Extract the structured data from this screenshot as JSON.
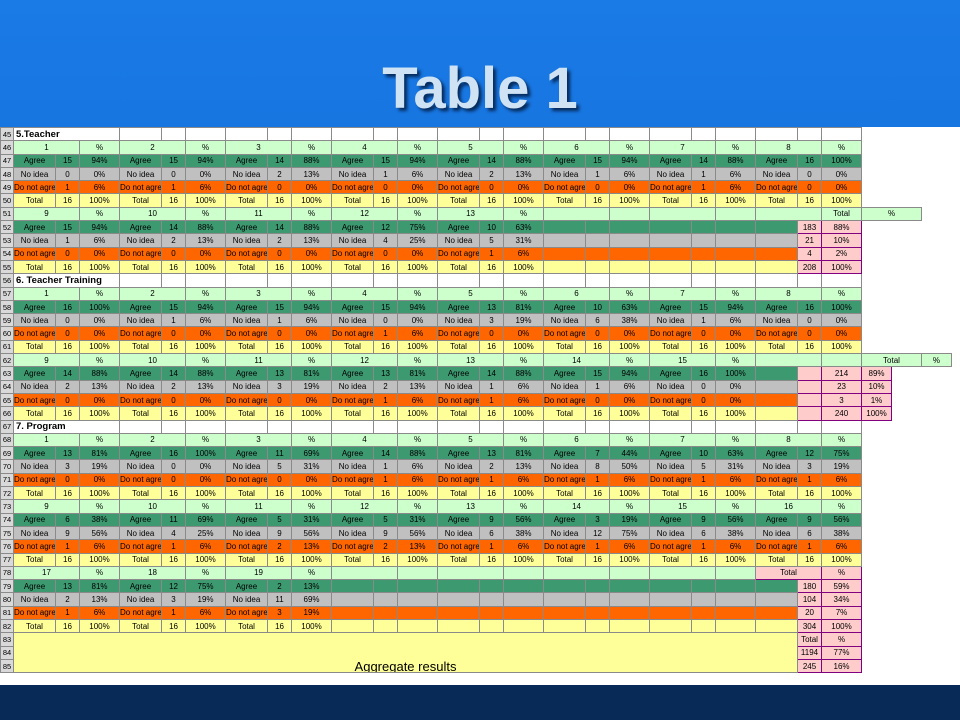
{
  "slide": {
    "title": "Table 1"
  },
  "aggregate_label": "Aggregate results",
  "rows": [
    {
      "n": "45",
      "type": "sec",
      "cells": [
        "5.Teacher"
      ]
    },
    {
      "n": "46",
      "type": "hdr",
      "cells": [
        "1",
        "%",
        "2",
        "%",
        "3",
        "%",
        "4",
        "%",
        "5",
        "%",
        "6",
        "%",
        "7",
        "%",
        "8",
        "%"
      ]
    },
    {
      "n": "47",
      "type": "agree",
      "cells": [
        "Agree",
        "15",
        "94%",
        "Agree",
        "15",
        "94%",
        "Agree",
        "14",
        "88%",
        "Agree",
        "15",
        "94%",
        "Agree",
        "14",
        "88%",
        "Agree",
        "15",
        "94%",
        "Agree",
        "14",
        "88%",
        "Agree",
        "16",
        "100%"
      ]
    },
    {
      "n": "48",
      "type": "noidea",
      "cells": [
        "No idea",
        "0",
        "0%",
        "No idea",
        "0",
        "0%",
        "No idea",
        "2",
        "13%",
        "No idea",
        "1",
        "6%",
        "No idea",
        "2",
        "13%",
        "No idea",
        "1",
        "6%",
        "No idea",
        "1",
        "6%",
        "No idea",
        "0",
        "0%"
      ]
    },
    {
      "n": "49",
      "type": "dna",
      "cells": [
        "Do not agree",
        "1",
        "6%",
        "Do not agree",
        "1",
        "6%",
        "Do not agree",
        "0",
        "0%",
        "Do not agree",
        "0",
        "0%",
        "Do not agree",
        "0",
        "0%",
        "Do not agree",
        "0",
        "0%",
        "Do not agree",
        "1",
        "6%",
        "Do not agree",
        "0",
        "0%"
      ]
    },
    {
      "n": "50",
      "type": "total",
      "cells": [
        "Total",
        "16",
        "100%",
        "Total",
        "16",
        "100%",
        "Total",
        "16",
        "100%",
        "Total",
        "16",
        "100%",
        "Total",
        "16",
        "100%",
        "Total",
        "16",
        "100%",
        "Total",
        "16",
        "100%",
        "Total",
        "16",
        "100%"
      ]
    },
    {
      "n": "51",
      "type": "hdr",
      "cells": [
        "9",
        "%",
        "10",
        "%",
        "11",
        "%",
        "12",
        "%",
        "13",
        "%",
        "",
        "",
        "",
        "",
        "",
        "Total",
        "%"
      ]
    },
    {
      "n": "52",
      "type": "agree",
      "cells": [
        "Agree",
        "15",
        "94%",
        "Agree",
        "14",
        "88%",
        "Agree",
        "14",
        "88%",
        "Agree",
        "12",
        "75%",
        "Agree",
        "10",
        "63%",
        "",
        "",
        "",
        "",
        "",
        "",
        "",
        "183",
        "88%"
      ]
    },
    {
      "n": "53",
      "type": "noidea",
      "cells": [
        "No idea",
        "1",
        "6%",
        "No idea",
        "2",
        "13%",
        "No idea",
        "2",
        "13%",
        "No idea",
        "4",
        "25%",
        "No idea",
        "5",
        "31%",
        "",
        "",
        "",
        "",
        "",
        "",
        "",
        "21",
        "10%"
      ]
    },
    {
      "n": "54",
      "type": "dna",
      "cells": [
        "Do not agree",
        "0",
        "0%",
        "Do not agree",
        "0",
        "0%",
        "Do not agree",
        "0",
        "0%",
        "Do not agree",
        "0",
        "0%",
        "Do not agree",
        "1",
        "6%",
        "",
        "",
        "",
        "",
        "",
        "",
        "",
        "4",
        "2%"
      ]
    },
    {
      "n": "55",
      "type": "total",
      "cells": [
        "Total",
        "16",
        "100%",
        "Total",
        "16",
        "100%",
        "Total",
        "16",
        "100%",
        "Total",
        "16",
        "100%",
        "Total",
        "16",
        "100%",
        "",
        "",
        "",
        "",
        "",
        "",
        "",
        "208",
        "100%"
      ]
    },
    {
      "n": "56",
      "type": "sec",
      "cells": [
        "6. Teacher Training"
      ]
    },
    {
      "n": "57",
      "type": "hdr",
      "cells": [
        "1",
        "%",
        "2",
        "%",
        "3",
        "%",
        "4",
        "%",
        "5",
        "%",
        "6",
        "%",
        "7",
        "%",
        "8",
        "%"
      ]
    },
    {
      "n": "58",
      "type": "agree",
      "cells": [
        "Agree",
        "16",
        "100%",
        "Agree",
        "15",
        "94%",
        "Agree",
        "15",
        "94%",
        "Agree",
        "15",
        "94%",
        "Agree",
        "13",
        "81%",
        "Agree",
        "10",
        "63%",
        "Agree",
        "15",
        "94%",
        "Agree",
        "16",
        "100%"
      ]
    },
    {
      "n": "59",
      "type": "noidea",
      "cells": [
        "No idea",
        "0",
        "0%",
        "No idea",
        "1",
        "6%",
        "No idea",
        "1",
        "6%",
        "No idea",
        "0",
        "0%",
        "No idea",
        "3",
        "19%",
        "No idea",
        "6",
        "38%",
        "No idea",
        "1",
        "6%",
        "No idea",
        "0",
        "0%"
      ]
    },
    {
      "n": "60",
      "type": "dna",
      "cells": [
        "Do not agree",
        "0",
        "0%",
        "Do not agree",
        "0",
        "0%",
        "Do not agree",
        "0",
        "0%",
        "Do not agree",
        "1",
        "6%",
        "Do not agree",
        "0",
        "0%",
        "Do not agree",
        "0",
        "0%",
        "Do not agree",
        "0",
        "0%",
        "Do not agree",
        "0",
        "0%"
      ]
    },
    {
      "n": "61",
      "type": "total",
      "cells": [
        "Total",
        "16",
        "100%",
        "Total",
        "16",
        "100%",
        "Total",
        "16",
        "100%",
        "Total",
        "16",
        "100%",
        "Total",
        "16",
        "100%",
        "Total",
        "16",
        "100%",
        "Total",
        "16",
        "100%",
        "Total",
        "16",
        "100%"
      ]
    },
    {
      "n": "62",
      "type": "hdr",
      "cells": [
        "9",
        "%",
        "10",
        "%",
        "11",
        "%",
        "12",
        "%",
        "13",
        "%",
        "14",
        "%",
        "15",
        "%",
        "",
        "",
        "Total",
        "%"
      ]
    },
    {
      "n": "63",
      "type": "agree",
      "cells": [
        "Agree",
        "14",
        "88%",
        "Agree",
        "14",
        "88%",
        "Agree",
        "13",
        "81%",
        "Agree",
        "13",
        "81%",
        "Agree",
        "14",
        "88%",
        "Agree",
        "15",
        "94%",
        "Agree",
        "16",
        "100%",
        "",
        "",
        "214",
        "89%"
      ]
    },
    {
      "n": "64",
      "type": "noidea",
      "cells": [
        "No idea",
        "2",
        "13%",
        "No idea",
        "2",
        "13%",
        "No idea",
        "3",
        "19%",
        "No idea",
        "2",
        "13%",
        "No idea",
        "1",
        "6%",
        "No idea",
        "1",
        "6%",
        "No idea",
        "0",
        "0%",
        "",
        "",
        "23",
        "10%"
      ]
    },
    {
      "n": "65",
      "type": "dna",
      "cells": [
        "Do not agree",
        "0",
        "0%",
        "Do not agree",
        "0",
        "0%",
        "Do not agree",
        "0",
        "0%",
        "Do not agree",
        "1",
        "6%",
        "Do not agree",
        "1",
        "6%",
        "Do not agree",
        "0",
        "0%",
        "Do not agree",
        "0",
        "0%",
        "",
        "",
        "3",
        "1%"
      ]
    },
    {
      "n": "66",
      "type": "total",
      "cells": [
        "Total",
        "16",
        "100%",
        "Total",
        "16",
        "100%",
        "Total",
        "16",
        "100%",
        "Total",
        "16",
        "100%",
        "Total",
        "16",
        "100%",
        "Total",
        "16",
        "100%",
        "Total",
        "16",
        "100%",
        "",
        "",
        "240",
        "100%"
      ]
    },
    {
      "n": "67",
      "type": "sec",
      "cells": [
        "7. Program"
      ]
    },
    {
      "n": "68",
      "type": "hdr",
      "cells": [
        "1",
        "%",
        "2",
        "%",
        "3",
        "%",
        "4",
        "%",
        "5",
        "%",
        "6",
        "%",
        "7",
        "%",
        "8",
        "%"
      ]
    },
    {
      "n": "69",
      "type": "agree",
      "cells": [
        "Agree",
        "13",
        "81%",
        "Agree",
        "16",
        "100%",
        "Agree",
        "11",
        "69%",
        "Agree",
        "14",
        "88%",
        "Agree",
        "13",
        "81%",
        "Agree",
        "7",
        "44%",
        "Agree",
        "10",
        "63%",
        "Agree",
        "12",
        "75%"
      ]
    },
    {
      "n": "70",
      "type": "noidea",
      "cells": [
        "No idea",
        "3",
        "19%",
        "No idea",
        "0",
        "0%",
        "No idea",
        "5",
        "31%",
        "No idea",
        "1",
        "6%",
        "No idea",
        "2",
        "13%",
        "No idea",
        "8",
        "50%",
        "No idea",
        "5",
        "31%",
        "No idea",
        "3",
        "19%"
      ]
    },
    {
      "n": "71",
      "type": "dna",
      "cells": [
        "Do not agree",
        "0",
        "0%",
        "Do not agree",
        "0",
        "0%",
        "Do not agree",
        "0",
        "0%",
        "Do not agree",
        "1",
        "6%",
        "Do not agree",
        "1",
        "6%",
        "Do not agree",
        "1",
        "6%",
        "Do not agree",
        "1",
        "6%",
        "Do not agree",
        "1",
        "6%"
      ]
    },
    {
      "n": "72",
      "type": "total",
      "cells": [
        "Total",
        "16",
        "100%",
        "Total",
        "16",
        "100%",
        "Total",
        "16",
        "100%",
        "Total",
        "16",
        "100%",
        "Total",
        "16",
        "100%",
        "Total",
        "16",
        "100%",
        "Total",
        "16",
        "100%",
        "Total",
        "16",
        "100%"
      ]
    },
    {
      "n": "73",
      "type": "hdr",
      "cells": [
        "9",
        "%",
        "10",
        "%",
        "11",
        "%",
        "12",
        "%",
        "13",
        "%",
        "14",
        "%",
        "15",
        "%",
        "16",
        "%"
      ]
    },
    {
      "n": "74",
      "type": "agree",
      "cells": [
        "Agree",
        "6",
        "38%",
        "Agree",
        "11",
        "69%",
        "Agree",
        "5",
        "31%",
        "Agree",
        "5",
        "31%",
        "Agree",
        "9",
        "56%",
        "Agree",
        "3",
        "19%",
        "Agree",
        "9",
        "56%",
        "Agree",
        "9",
        "56%"
      ]
    },
    {
      "n": "75",
      "type": "noidea",
      "cells": [
        "No idea",
        "9",
        "56%",
        "No idea",
        "4",
        "25%",
        "No idea",
        "9",
        "56%",
        "No idea",
        "9",
        "56%",
        "No idea",
        "6",
        "38%",
        "No idea",
        "12",
        "75%",
        "No idea",
        "6",
        "38%",
        "No idea",
        "6",
        "38%"
      ]
    },
    {
      "n": "76",
      "type": "dna",
      "cells": [
        "Do not agree",
        "1",
        "6%",
        "Do not agree",
        "1",
        "6%",
        "Do not agree",
        "2",
        "13%",
        "Do not agree",
        "2",
        "13%",
        "Do not agree",
        "1",
        "6%",
        "Do not agree",
        "1",
        "6%",
        "Do not agree",
        "1",
        "6%",
        "Do not agree",
        "1",
        "6%"
      ]
    },
    {
      "n": "77",
      "type": "total",
      "cells": [
        "Total",
        "16",
        "100%",
        "Total",
        "16",
        "100%",
        "Total",
        "16",
        "100%",
        "Total",
        "16",
        "100%",
        "Total",
        "16",
        "100%",
        "Total",
        "16",
        "100%",
        "Total",
        "16",
        "100%",
        "Total",
        "16",
        "100%"
      ]
    },
    {
      "n": "78",
      "type": "hdr",
      "cells": [
        "17",
        "%",
        "18",
        "%",
        "19",
        "%",
        "",
        "",
        "",
        "",
        "",
        "",
        "",
        "",
        "Total",
        "%"
      ]
    },
    {
      "n": "79",
      "type": "agree",
      "cells": [
        "Agree",
        "13",
        "81%",
        "Agree",
        "12",
        "75%",
        "Agree",
        "2",
        "13%",
        "",
        "",
        "",
        "",
        "",
        "",
        "",
        "",
        "",
        "",
        "",
        "",
        "",
        "180",
        "59%"
      ]
    },
    {
      "n": "80",
      "type": "noidea",
      "cells": [
        "No idea",
        "2",
        "13%",
        "No idea",
        "3",
        "19%",
        "No idea",
        "11",
        "69%",
        "",
        "",
        "",
        "",
        "",
        "",
        "",
        "",
        "",
        "",
        "",
        "",
        "",
        "104",
        "34%"
      ]
    },
    {
      "n": "81",
      "type": "dna",
      "cells": [
        "Do not agree",
        "1",
        "6%",
        "Do not agree",
        "1",
        "6%",
        "Do not agree",
        "3",
        "19%",
        "",
        "",
        "",
        "",
        "",
        "",
        "",
        "",
        "",
        "",
        "",
        "",
        "",
        "20",
        "7%"
      ]
    },
    {
      "n": "82",
      "type": "total",
      "cells": [
        "Total",
        "16",
        "100%",
        "Total",
        "16",
        "100%",
        "Total",
        "16",
        "100%",
        "",
        "",
        "",
        "",
        "",
        "",
        "",
        "",
        "",
        "",
        "",
        "",
        "",
        "304",
        "100%"
      ]
    },
    {
      "n": "83",
      "type": "agg",
      "cells": [
        "Total",
        "%"
      ]
    },
    {
      "n": "84",
      "type": "agg",
      "cells": [
        "1194",
        "77%"
      ]
    },
    {
      "n": "85",
      "type": "agg",
      "cells": [
        "245",
        "16%"
      ]
    }
  ]
}
